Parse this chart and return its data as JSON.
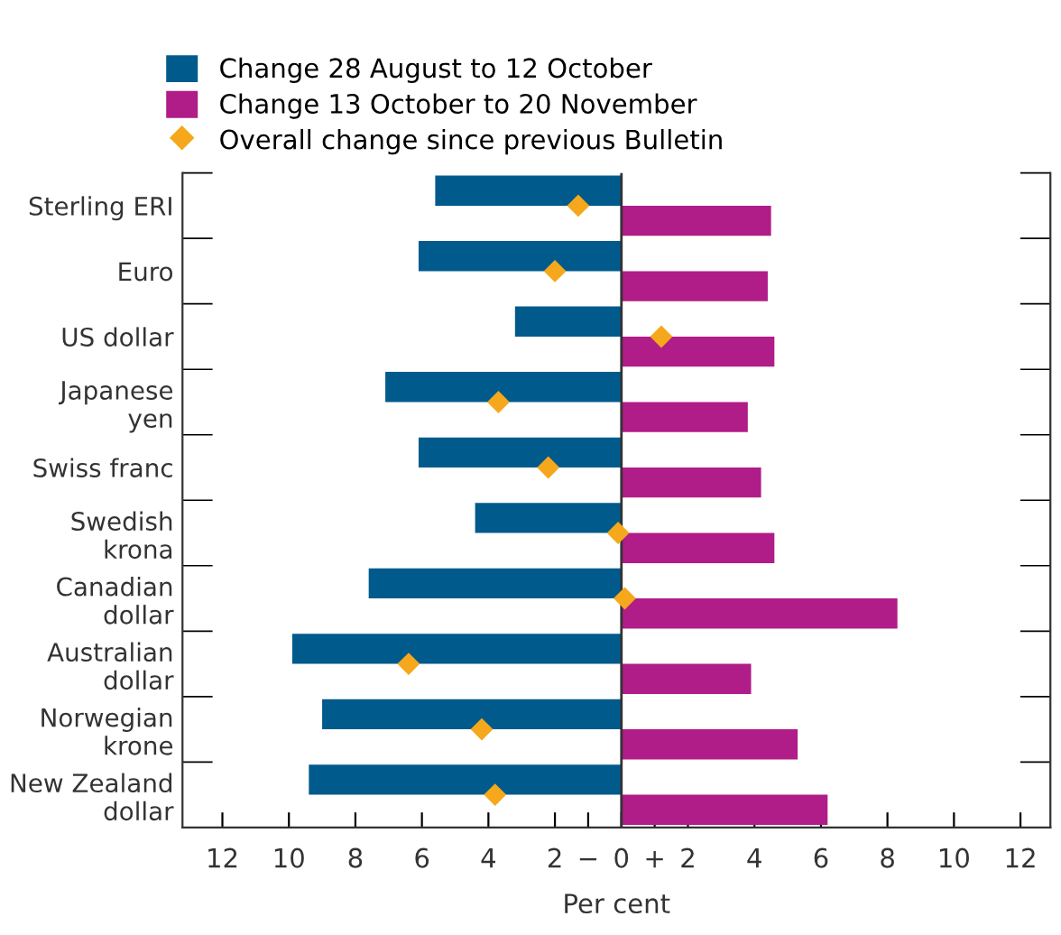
{
  "chart_data": {
    "type": "bar",
    "orientation": "horizontal",
    "xlabel": "Per cent",
    "categories": [
      "Sterling ERI",
      "Euro",
      "US dollar",
      "Japanese\nyen",
      "Swiss franc",
      "Swedish\nkrona",
      "Canadian\ndollar",
      "Australian\ndollar",
      "Norwegian\nkrone",
      "New Zealand\ndollar"
    ],
    "series": [
      {
        "name": "Change 28 August to 12 October",
        "color": "#005a8c",
        "values": [
          -5.6,
          -6.1,
          -3.2,
          -7.1,
          -6.1,
          -4.4,
          -7.6,
          -9.9,
          -9.0,
          -9.4
        ]
      },
      {
        "name": "Change 13 October to 20 November",
        "color": "#b01c88",
        "values": [
          4.5,
          4.4,
          4.6,
          3.8,
          4.2,
          4.6,
          8.3,
          3.9,
          5.3,
          6.2
        ]
      },
      {
        "name": "Overall change since previous Bulletin",
        "type": "scatter",
        "marker": "diamond",
        "color": "#f5a81c",
        "values": [
          -1.3,
          -2.0,
          1.2,
          -3.7,
          -2.2,
          -0.1,
          0.1,
          -6.4,
          -4.2,
          -3.8
        ]
      }
    ],
    "xlim": [
      -13.2,
      12.9
    ],
    "xticks": [
      {
        "value": -12,
        "label": "12"
      },
      {
        "value": -10,
        "label": "10"
      },
      {
        "value": -8,
        "label": "8"
      },
      {
        "value": -6,
        "label": "6"
      },
      {
        "value": -4,
        "label": "4"
      },
      {
        "value": -2,
        "label": "2"
      },
      {
        "value": -1,
        "label": "−"
      },
      0,
      {
        "value": 1,
        "label": "+"
      },
      2,
      4,
      6,
      8,
      10,
      12
    ],
    "ref_lines": [
      {
        "axis": "x",
        "value": 0,
        "color": "#333333"
      }
    ],
    "grid": false,
    "legend": "top left"
  }
}
